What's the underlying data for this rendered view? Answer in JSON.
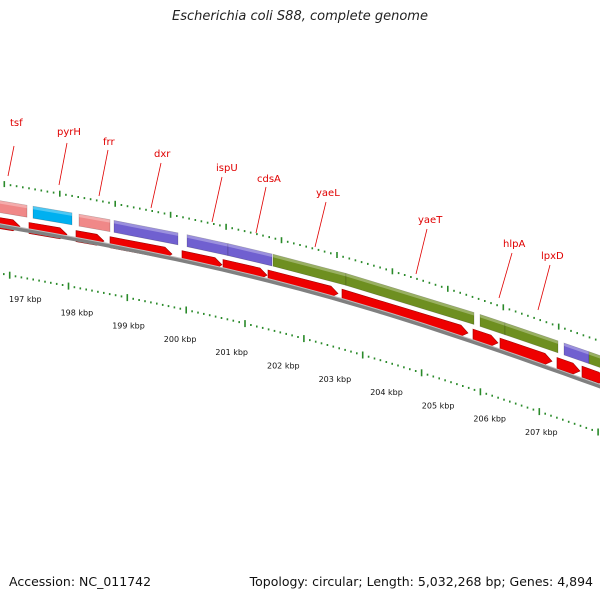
{
  "title": "Escherichia coli S88, complete genome",
  "footer": {
    "accession": "Accession: NC_011742",
    "summary": "Topology: circular; Length: 5,032,268 bp; Genes: 4,894"
  },
  "colors": {
    "gene_label": "#e00000",
    "cds_arrow": "#ee0000",
    "backbone": "#808080",
    "tick": "#2a8a2a",
    "cog_pink": "#f08888",
    "cog_cyan": "#00b0f0",
    "cog_purple": "#7060d0",
    "cog_olive": "#6e8f20"
  },
  "genes": [
    {
      "name": "tsf",
      "cog": "pink"
    },
    {
      "name": "pyrH",
      "cog": "cyan"
    },
    {
      "name": "frr",
      "cog": "pink"
    },
    {
      "name": "dxr",
      "cog": "purple"
    },
    {
      "name": "ispU",
      "cog": "purple"
    },
    {
      "name": "cdsA",
      "cog": "purple"
    },
    {
      "name": "yaeL",
      "cog": "olive"
    },
    {
      "name": "yaeT",
      "cog": "olive"
    },
    {
      "name": "hlpA",
      "cog": "olive"
    },
    {
      "name": "lpxD",
      "cog": "purple"
    }
  ],
  "scale_labels": [
    "197 kbp",
    "198 kbp",
    "199 kbp",
    "200 kbp",
    "201 kbp",
    "202 kbp",
    "203 kbp",
    "204 kbp",
    "205 kbp",
    "206 kbp",
    "207 kbp"
  ]
}
